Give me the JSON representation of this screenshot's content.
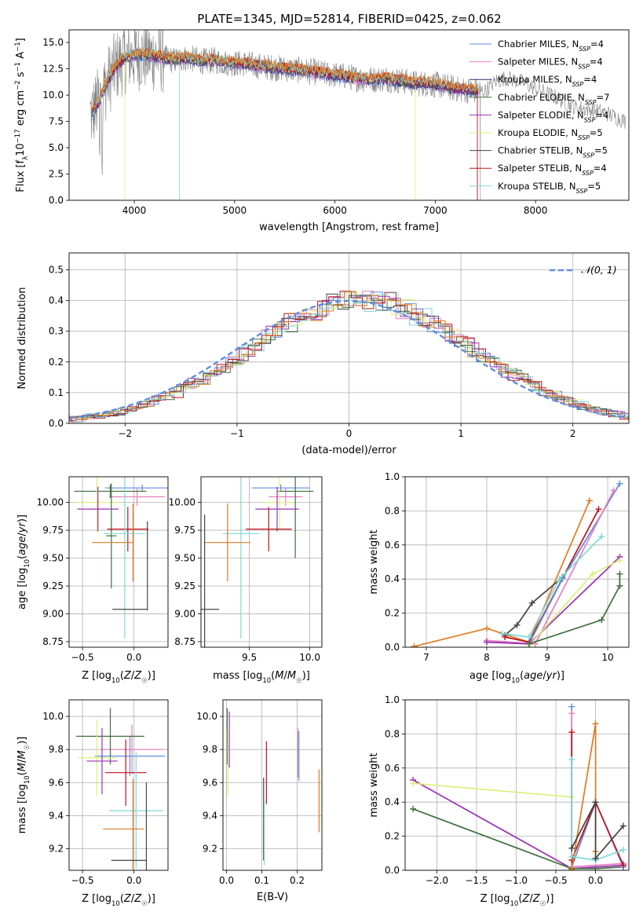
{
  "figure": {
    "title": "PLATE=1345, MJD=52814, FIBERID=0425, z=0.062"
  },
  "colors": {
    "chabrier_miles": "#5f8ee0",
    "salpeter_miles": "#e57fbf",
    "kroupa_miles": "#2a2a70",
    "chabrier_elodie": "#3f6f3f",
    "salpeter_elodie": "#9b30b5",
    "kroupa_elodie": "#d9f07a",
    "chabrier_stelib": "#444444",
    "salpeter_stelib": "#c0101a",
    "kroupa_stelib": "#7fd8d8",
    "orange": "#e07a22",
    "grey_data": "#7f7f7f"
  },
  "chart_data": [
    {
      "panel": "spectrum",
      "type": "line",
      "xlabel": "wavelength [Angstrom, rest frame]",
      "ylabel": "Flux [f_λ 10^-17 erg cm^-2 s^-1 A^-1]",
      "xlim": [
        3350,
        8930
      ],
      "ylim": [
        0,
        16.2
      ],
      "xticks": [
        "4000",
        "5000",
        "6000",
        "7000",
        "8000"
      ],
      "yticks": [
        "0.0",
        "2.5",
        "5.0",
        "7.5",
        "10.0",
        "12.5",
        "15.0"
      ],
      "grid": false,
      "legend_position": "upper right",
      "legend": [
        "Chabrier MILES, N_SSP=4",
        "Salpeter MILES, N_SSP=4",
        "Kroupa MILES, N_SSP=4",
        "Chabrier ELODIE, N_SSP=7",
        "Salpeter ELODIE, N_SSP=4",
        "Kroupa ELODIE, N_SSP=5",
        "Chabrier STELIB, N_SSP=5",
        "Salpeter STELIB, N_SSP=4",
        "Kroupa STELIB, N_SSP=5"
      ],
      "model_envelope": {
        "x": [
          3580,
          3650,
          3720,
          3800,
          3900,
          4000,
          4100,
          4200,
          4300,
          4400,
          4500,
          4600,
          4700,
          4800,
          4900,
          5000,
          5100,
          5200,
          5300,
          5400,
          5500,
          5600,
          5700,
          5800,
          5900,
          6000,
          6100,
          6200,
          6300,
          6400,
          6500,
          6600,
          6700,
          6800,
          6900,
          7000,
          7100,
          7200,
          7300,
          7400,
          7500,
          7600,
          7700,
          7800,
          7900,
          8000,
          8100,
          8200,
          8300,
          8400,
          8500,
          8600,
          8700,
          8800,
          8900
        ],
        "y": [
          8.2,
          9.5,
          11.0,
          12.5,
          13.5,
          13.8,
          13.8,
          13.7,
          13.5,
          13.3,
          13.5,
          13.4,
          13.2,
          13.3,
          13.1,
          13.0,
          13.0,
          12.8,
          12.7,
          12.6,
          12.5,
          12.4,
          12.3,
          12.2,
          12.0,
          11.9,
          11.8,
          11.6,
          11.5,
          11.5,
          11.6,
          11.4,
          11.3,
          11.1,
          11.1,
          11.0,
          10.8,
          10.6,
          10.5,
          10.4,
          10.4,
          11.3,
          11.6,
          11.4,
          11.1,
          10.6,
          10.2,
          9.8,
          9.3,
          8.8,
          8.7,
          8.5,
          8.3,
          7.9,
          7.5
        ]
      }
    },
    {
      "panel": "residual_histogram",
      "type": "line",
      "xlabel": "(data-model)/error",
      "ylabel": "Normed distribution",
      "xlim": [
        -2.5,
        2.5
      ],
      "ylim": [
        0,
        0.555
      ],
      "xticks": [
        "−2",
        "−1",
        "0",
        "1",
        "2"
      ],
      "yticks": [
        "0.0",
        "0.1",
        "0.2",
        "0.3",
        "0.4",
        "0.5"
      ],
      "grid": true,
      "legend_position": "upper right",
      "legend": [
        "𝒩(0, 1)"
      ],
      "normal_curve": {
        "mu": 0,
        "sigma": 1
      }
    },
    {
      "panel": "age_vs_Z",
      "type": "scatter",
      "xlabel": "Z [log10(Z/Z☉)]",
      "ylabel": "age  [log10(age/yr)]",
      "xlim": [
        -0.63,
        0.33
      ],
      "ylim": [
        8.7,
        10.23
      ],
      "xticks": [
        "−0.5",
        "0.0"
      ],
      "yticks": [
        "8.75",
        "9.00",
        "9.25",
        "9.50",
        "9.75",
        "10.00"
      ],
      "grid": true,
      "errorbars": [
        {
          "color": "chabrier_miles",
          "x": 0.08,
          "xerr": 0.36,
          "y": 10.13,
          "yerr": 0.03
        },
        {
          "color": "salpeter_miles",
          "x": 0.03,
          "xerr": 0.27,
          "y": 10.05,
          "yerr": 0.08
        },
        {
          "color": "chabrier_elodie",
          "x": -0.23,
          "xerr": 0.35,
          "y": 10.1,
          "yerr": 0.06
        },
        {
          "color": "kroupa_elodie",
          "x": -0.36,
          "xerr": 0.21,
          "y": 10.0,
          "yerr": 0.27
        },
        {
          "color": "salpeter_elodie",
          "x": -0.35,
          "xerr": 0.2,
          "y": 9.94,
          "yerr": 0.2
        },
        {
          "color": "chabrier_elodie",
          "x": -0.22,
          "xerr": 0.05,
          "y": 9.7,
          "yerr": 0.47
        },
        {
          "color": "salpeter_stelib",
          "x": -0.06,
          "xerr": 0.2,
          "y": 9.76,
          "yerr": 0.2
        },
        {
          "color": "kroupa_stelib",
          "x": -0.09,
          "xerr": 0.2,
          "y": 9.72,
          "yerr": 0.94
        },
        {
          "color": "orange",
          "x": -0.21,
          "xerr": 0.2,
          "y": 9.64,
          "yerr": 0.0
        },
        {
          "color": "orange",
          "x": -0.01,
          "xerr": 0.0,
          "y": 9.64,
          "yerr": 0.35
        },
        {
          "color": "chabrier_stelib",
          "x": -0.04,
          "xerr": 0.17,
          "y": 9.04,
          "yerr": 0.0
        },
        {
          "color": "chabrier_stelib",
          "x": 0.13,
          "xerr": 0.0,
          "y": 9.43,
          "yerr": 0.4
        }
      ]
    },
    {
      "panel": "age_vs_mass",
      "type": "scatter",
      "xlabel": "mass [log10(M/M☉)]",
      "ylabel": "",
      "xlim": [
        9.1,
        10.1
      ],
      "ylim": [
        8.7,
        10.23
      ],
      "xticks": [
        "9.5",
        "10.0"
      ],
      "yticks": [
        "8.75",
        "9.00",
        "9.25",
        "9.50",
        "9.75",
        "10.00"
      ],
      "grid": true,
      "errorbars": [
        {
          "color": "chabrier_miles",
          "x": 9.76,
          "xerr": 0.24,
          "y": 10.13,
          "yerr": 0.03
        },
        {
          "color": "salpeter_miles",
          "x": 9.8,
          "xerr": 0.14,
          "y": 10.05,
          "yerr": 0.08
        },
        {
          "color": "chabrier_elodie",
          "x": 9.88,
          "xerr": 0.15,
          "y": 10.1,
          "yerr": 0.6
        },
        {
          "color": "kroupa_elodie",
          "x": 9.75,
          "xerr": 0.12,
          "y": 10.0,
          "yerr": 0.27
        },
        {
          "color": "salpeter_elodie",
          "x": 9.73,
          "xerr": 0.18,
          "y": 9.94,
          "yerr": 0.2
        },
        {
          "color": "salpeter_stelib",
          "x": 9.66,
          "xerr": 0.19,
          "y": 9.76,
          "yerr": 0.2
        },
        {
          "color": "kroupa_stelib",
          "x": 9.43,
          "xerr": 0.15,
          "y": 9.72,
          "yerr": 0.94
        },
        {
          "color": "orange",
          "x": 9.32,
          "xerr": 0.19,
          "y": 9.64,
          "yerr": 0.35
        },
        {
          "color": "chabrier_stelib",
          "x": 9.13,
          "xerr": 0.12,
          "y": 9.04,
          "yerr": 0.85
        }
      ]
    },
    {
      "panel": "mass_weight_vs_age",
      "type": "line",
      "xlabel": "age  [log10(age/yr)]",
      "ylabel": "mass weight",
      "xlim": [
        6.65,
        10.35
      ],
      "ylim": [
        0,
        1.0
      ],
      "xticks": [
        "7",
        "8",
        "9",
        "10"
      ],
      "yticks": [
        "0.0",
        "0.2",
        "0.4",
        "0.6",
        "0.8",
        "1.0"
      ],
      "grid": true,
      "series": [
        {
          "color": "orange",
          "x": [
            6.8,
            8.0,
            8.7,
            9.7
          ],
          "y": [
            0.005,
            0.11,
            0.03,
            0.86
          ]
        },
        {
          "color": "chabrier_stelib",
          "x": [
            8.3,
            8.5,
            8.75,
            9.25
          ],
          "y": [
            0.07,
            0.13,
            0.26,
            0.41
          ]
        },
        {
          "color": "salpeter_stelib",
          "x": [
            8.3,
            8.7,
            9.85
          ],
          "y": [
            0.06,
            0.03,
            0.81
          ]
        },
        {
          "color": "chabrier_miles",
          "x": [
            8.0,
            8.7,
            9.25,
            10.2
          ],
          "y": [
            0.03,
            0.02,
            0.4,
            0.96
          ]
        },
        {
          "color": "salpeter_miles",
          "x": [
            8.0,
            8.8,
            10.1
          ],
          "y": [
            0.04,
            0.02,
            0.92
          ]
        },
        {
          "color": "kroupa_stelib",
          "x": [
            8.25,
            8.7,
            9.2,
            9.9
          ],
          "y": [
            0.08,
            0.06,
            0.4,
            0.65
          ]
        },
        {
          "color": "salpeter_elodie",
          "x": [
            8.0,
            8.7,
            10.2
          ],
          "y": [
            0.03,
            0.02,
            0.53
          ]
        },
        {
          "color": "kroupa_elodie",
          "x": [
            8.7,
            9.75,
            10.2
          ],
          "y": [
            0.01,
            0.43,
            0.51
          ]
        },
        {
          "color": "chabrier_elodie",
          "x": [
            8.7,
            9.9,
            10.2,
            10.2
          ],
          "y": [
            0.02,
            0.16,
            0.36,
            0.43
          ]
        }
      ]
    },
    {
      "panel": "mass_vs_Z",
      "type": "scatter",
      "xlabel": "Z [log10(Z/Z☉)]",
      "ylabel": "mass [log10(M/M☉)]",
      "xlim": [
        -0.63,
        0.33
      ],
      "ylim": [
        9.07,
        10.1
      ],
      "xticks": [
        "−0.5",
        "0.0"
      ],
      "yticks": [
        "9.2",
        "9.4",
        "9.6",
        "9.8",
        "10.0"
      ],
      "grid": true,
      "errorbars": [
        {
          "color": "chabrier_miles",
          "x": -0.04,
          "xerr": 0.34,
          "y": 9.76,
          "yerr": 0.12
        },
        {
          "color": "salpeter_miles",
          "x": -0.02,
          "xerr": 0.3,
          "y": 9.8,
          "yerr": 0.15
        },
        {
          "color": "chabrier_elodie",
          "x": -0.23,
          "xerr": 0.33,
          "y": 9.88,
          "yerr": 0.17
        },
        {
          "color": "kroupa_elodie",
          "x": -0.36,
          "xerr": 0.18,
          "y": 9.75,
          "yerr": 0.23
        },
        {
          "color": "salpeter_elodie",
          "x": -0.31,
          "xerr": 0.15,
          "y": 9.73,
          "yerr": 0.2
        },
        {
          "color": "salpeter_stelib",
          "x": -0.08,
          "xerr": 0.2,
          "y": 9.66,
          "yerr": 0.2
        },
        {
          "color": "kroupa_stelib",
          "x": 0.02,
          "xerr": 0.26,
          "y": 9.43,
          "yerr": 0.35
        },
        {
          "color": "orange",
          "x": -0.1,
          "xerr": 0.2,
          "y": 9.32,
          "yerr": 0.0
        },
        {
          "color": "orange",
          "x": -0.01,
          "xerr": 0.0,
          "y": 9.32,
          "yerr": 0.3
        },
        {
          "color": "chabrier_stelib",
          "x": -0.05,
          "xerr": 0.17,
          "y": 9.13,
          "yerr": 0.0
        },
        {
          "color": "chabrier_stelib",
          "x": 0.12,
          "xerr": 0.0,
          "y": 9.32,
          "yerr": 0.28
        }
      ]
    },
    {
      "panel": "mass_vs_ebv",
      "type": "scatter",
      "xlabel": "E(B-V)",
      "ylabel": "",
      "xlim": [
        -0.01,
        0.27
      ],
      "ylim": [
        9.07,
        10.1
      ],
      "xticks": [
        "0.0",
        "0.1",
        "0.2"
      ],
      "yticks": [
        "9.2",
        "9.4",
        "9.6",
        "9.8",
        "10.0"
      ],
      "grid": true,
      "errorbars": [
        {
          "color": "chabrier_elodie",
          "x": 0.002,
          "xerr": 0.0,
          "y": 9.88,
          "yerr": 0.17
        },
        {
          "color": "salpeter_elodie",
          "x": 0.008,
          "xerr": 0.0,
          "y": 9.86,
          "yerr": 0.17
        },
        {
          "color": "kroupa_elodie",
          "x": 0.004,
          "xerr": 0.0,
          "y": 9.72,
          "yerr": 0.2
        },
        {
          "color": "chabrier_miles",
          "x": 0.205,
          "xerr": 0.0,
          "y": 9.76,
          "yerr": 0.15
        },
        {
          "color": "salpeter_miles",
          "x": 0.202,
          "xerr": 0.0,
          "y": 9.78,
          "yerr": 0.15
        },
        {
          "color": "salpeter_stelib",
          "x": 0.113,
          "xerr": 0.0,
          "y": 9.66,
          "yerr": 0.19
        },
        {
          "color": "chabrier_stelib",
          "x": 0.105,
          "xerr": 0.0,
          "y": 9.38,
          "yerr": 0.25
        },
        {
          "color": "kroupa_stelib",
          "x": 0.107,
          "xerr": 0.0,
          "y": 9.3,
          "yerr": 0.2
        },
        {
          "color": "orange",
          "x": 0.262,
          "xerr": 0.0,
          "y": 9.49,
          "yerr": 0.19
        }
      ]
    },
    {
      "panel": "mass_weight_vs_Z",
      "type": "line",
      "xlabel": "Z [log10(Z/Z☉)]",
      "ylabel": "mass weight",
      "xlim": [
        -2.4,
        0.42
      ],
      "ylim": [
        0,
        1.0
      ],
      "xticks": [
        "−2.0",
        "−1.5",
        "−1.0",
        "−0.5",
        "0.0"
      ],
      "yticks": [
        "0.0",
        "0.2",
        "0.4",
        "0.6",
        "0.8",
        "1.0"
      ],
      "grid": true,
      "series": [
        {
          "color": "salpeter_elodie",
          "x": [
            -2.3,
            -0.3,
            0.35
          ],
          "y": [
            0.53,
            0.01,
            0.03
          ]
        },
        {
          "color": "kroupa_elodie",
          "x": [
            -2.3,
            -0.3,
            -0.3
          ],
          "y": [
            0.51,
            0.43,
            0.01
          ]
        },
        {
          "color": "chabrier_elodie",
          "x": [
            -2.3,
            -0.3,
            0.0,
            0.35
          ],
          "y": [
            0.36,
            0.01,
            0.01,
            0.02
          ]
        },
        {
          "color": "chabrier_miles",
          "x": [
            -0.3,
            -0.3,
            0.0,
            0.35
          ],
          "y": [
            0.96,
            0.02,
            0.4,
            0.02
          ]
        },
        {
          "color": "salpeter_miles",
          "x": [
            -0.3,
            -0.3,
            0.35
          ],
          "y": [
            0.92,
            0.02,
            0.04
          ]
        },
        {
          "color": "salpeter_stelib",
          "x": [
            -0.3,
            -0.3,
            0.0,
            0.35
          ],
          "y": [
            0.81,
            0.06,
            0.4,
            0.03
          ]
        },
        {
          "color": "orange",
          "x": [
            -0.3,
            0.0,
            0.0
          ],
          "y": [
            0.005,
            0.86,
            0.11
          ]
        },
        {
          "color": "kroupa_stelib",
          "x": [
            -0.3,
            -0.3,
            0.0,
            0.35
          ],
          "y": [
            0.65,
            0.08,
            0.06,
            0.12
          ]
        },
        {
          "color": "chabrier_stelib",
          "x": [
            -0.3,
            0.0,
            0.0,
            0.35
          ],
          "y": [
            0.13,
            0.4,
            0.07,
            0.26
          ]
        }
      ]
    }
  ]
}
